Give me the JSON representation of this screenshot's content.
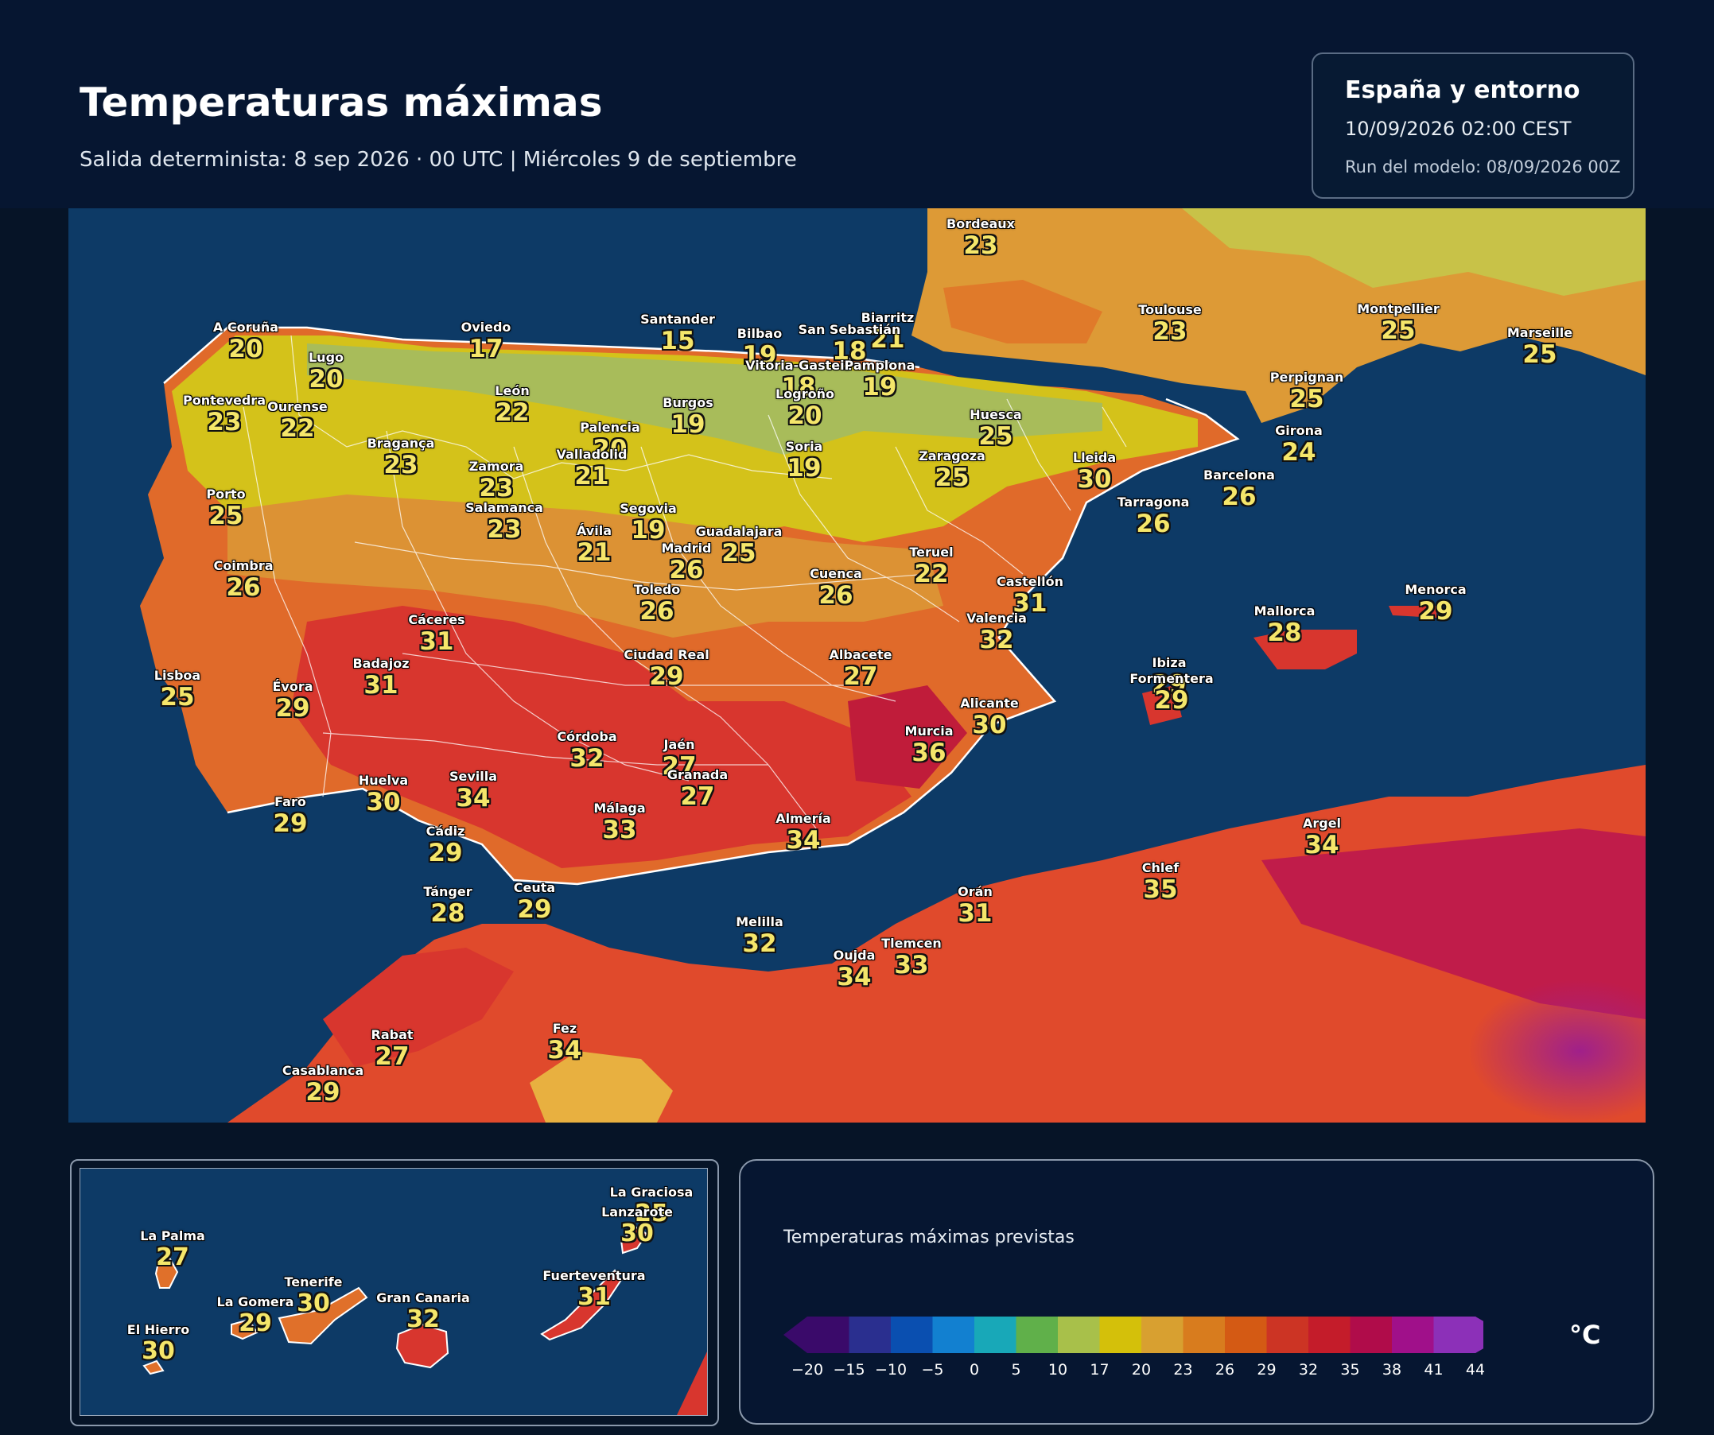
{
  "header": {
    "title": "Temperaturas máximas",
    "subtitle": "Salida determinista: 8 sep 2026 · 00 UTC  |  Miércoles 9 de septiembre"
  },
  "infobox": {
    "region": "España y entorno",
    "valid": "10/09/2026  02:00 CEST",
    "run": "Run del modelo: 08/09/2026 00Z"
  },
  "colors": {
    "sea": "#0d3a66",
    "coast": "#e08a2c",
    "cool": "#c4c04a",
    "warm": "#e06a2a",
    "hot": "#d23a34",
    "veryhot": "#b8204a",
    "extreme": "#a0208a"
  },
  "cities": [
    {
      "name": "Bordeaux",
      "temp": "23"
    },
    {
      "name": "Toulouse",
      "temp": "23"
    },
    {
      "name": "Montpellier",
      "temp": "25"
    },
    {
      "name": "Marseille",
      "temp": "25"
    },
    {
      "name": "Biarritz",
      "temp": "21"
    },
    {
      "name": "Perpignan",
      "temp": "25"
    },
    {
      "name": "A Coruña",
      "temp": "20"
    },
    {
      "name": "Lugo",
      "temp": "20"
    },
    {
      "name": "Oviedo",
      "temp": "17"
    },
    {
      "name": "Santander",
      "temp": "15"
    },
    {
      "name": "Bilbao",
      "temp": "19"
    },
    {
      "name": "San Sebastián",
      "temp": "18"
    },
    {
      "name": "Vitoria-Gasteiz",
      "temp": "18"
    },
    {
      "name": "Pamplona",
      "temp": "19"
    },
    {
      "name": "Pontevedra",
      "temp": "23"
    },
    {
      "name": "Ourense",
      "temp": "22"
    },
    {
      "name": "León",
      "temp": "22"
    },
    {
      "name": "Burgos",
      "temp": "19"
    },
    {
      "name": "Logroño",
      "temp": "20"
    },
    {
      "name": "Huesca",
      "temp": "25"
    },
    {
      "name": "Girona",
      "temp": "24"
    },
    {
      "name": "Bragança",
      "temp": "23"
    },
    {
      "name": "Palencia",
      "temp": "20"
    },
    {
      "name": "Valladolid",
      "temp": "21"
    },
    {
      "name": "Soria",
      "temp": "19"
    },
    {
      "name": "Zaragoza",
      "temp": "25"
    },
    {
      "name": "Lleida",
      "temp": "30"
    },
    {
      "name": "Barcelona",
      "temp": "26"
    },
    {
      "name": "Zamora",
      "temp": "23"
    },
    {
      "name": "Tarragona",
      "temp": "26"
    },
    {
      "name": "Porto",
      "temp": "25"
    },
    {
      "name": "Salamanca",
      "temp": "23"
    },
    {
      "name": "Segovia",
      "temp": "19"
    },
    {
      "name": "Ávila",
      "temp": "21"
    },
    {
      "name": "Guadalajara",
      "temp": "25"
    },
    {
      "name": "Madrid",
      "temp": "26"
    },
    {
      "name": "Teruel",
      "temp": "22"
    },
    {
      "name": "Coimbra",
      "temp": "26"
    },
    {
      "name": "Cuenca",
      "temp": "26"
    },
    {
      "name": "Toledo",
      "temp": "26"
    },
    {
      "name": "Castellón",
      "temp": "31"
    },
    {
      "name": "Menorca",
      "temp": "29"
    },
    {
      "name": "Cáceres",
      "temp": "31"
    },
    {
      "name": "Valencia",
      "temp": "32"
    },
    {
      "name": "Mallorca",
      "temp": "28"
    },
    {
      "name": "Badajoz",
      "temp": "31"
    },
    {
      "name": "Ciudad Real",
      "temp": "29"
    },
    {
      "name": "Albacete",
      "temp": "27"
    },
    {
      "name": "Lisboa",
      "temp": "25"
    },
    {
      "name": "Évora",
      "temp": "29"
    },
    {
      "name": "Ibiza",
      "temp": "29"
    },
    {
      "name": "Formentera",
      "temp": "29"
    },
    {
      "name": "Alicante",
      "temp": "30"
    },
    {
      "name": "Murcia",
      "temp": "36"
    },
    {
      "name": "Córdoba",
      "temp": "32"
    },
    {
      "name": "Jaén",
      "temp": "27"
    },
    {
      "name": "Huelva",
      "temp": "30"
    },
    {
      "name": "Sevilla",
      "temp": "34"
    },
    {
      "name": "Granada",
      "temp": "27"
    },
    {
      "name": "Faro",
      "temp": "29"
    },
    {
      "name": "Almería",
      "temp": "34"
    },
    {
      "name": "Málaga",
      "temp": "33"
    },
    {
      "name": "Cádiz",
      "temp": "29"
    },
    {
      "name": "Argel",
      "temp": "34"
    },
    {
      "name": "Chlef",
      "temp": "35"
    },
    {
      "name": "Tánger",
      "temp": "28"
    },
    {
      "name": "Ceuta",
      "temp": "29"
    },
    {
      "name": "Orán",
      "temp": "31"
    },
    {
      "name": "Melilla",
      "temp": "32"
    },
    {
      "name": "Tlemcen",
      "temp": "33"
    },
    {
      "name": "Oujda",
      "temp": "34"
    },
    {
      "name": "Rabat",
      "temp": "27"
    },
    {
      "name": "Fez",
      "temp": "34"
    },
    {
      "name": "Casablanca",
      "temp": "29"
    }
  ],
  "canarias": [
    {
      "name": "La Graciosa",
      "temp": "25"
    },
    {
      "name": "Lanzarote",
      "temp": "30"
    },
    {
      "name": "La Palma",
      "temp": "27"
    },
    {
      "name": "Fuerteventura",
      "temp": "31"
    },
    {
      "name": "Tenerife",
      "temp": "30"
    },
    {
      "name": "La Gomera",
      "temp": "29"
    },
    {
      "name": "Gran Canaria",
      "temp": "32"
    },
    {
      "name": "El Hierro",
      "temp": "30"
    }
  ],
  "legend": {
    "title": "Temperaturas máximas previstas",
    "unit": "°C",
    "ticks": [
      "−20",
      "−15",
      "−10",
      "−5",
      "0",
      "5",
      "10",
      "17",
      "20",
      "23",
      "26",
      "29",
      "32",
      "35",
      "38",
      "41",
      "44"
    ],
    "colors": [
      "#3a0a6a",
      "#2a2f8f",
      "#0a4fb0",
      "#1280d0",
      "#18a8b8",
      "#60b04a",
      "#a8c04a",
      "#d4c00a",
      "#d8a030",
      "#d87c1e",
      "#d45a14",
      "#cc3424",
      "#c41c2a",
      "#b00c4a",
      "#a0108a",
      "#8c30b8"
    ]
  }
}
